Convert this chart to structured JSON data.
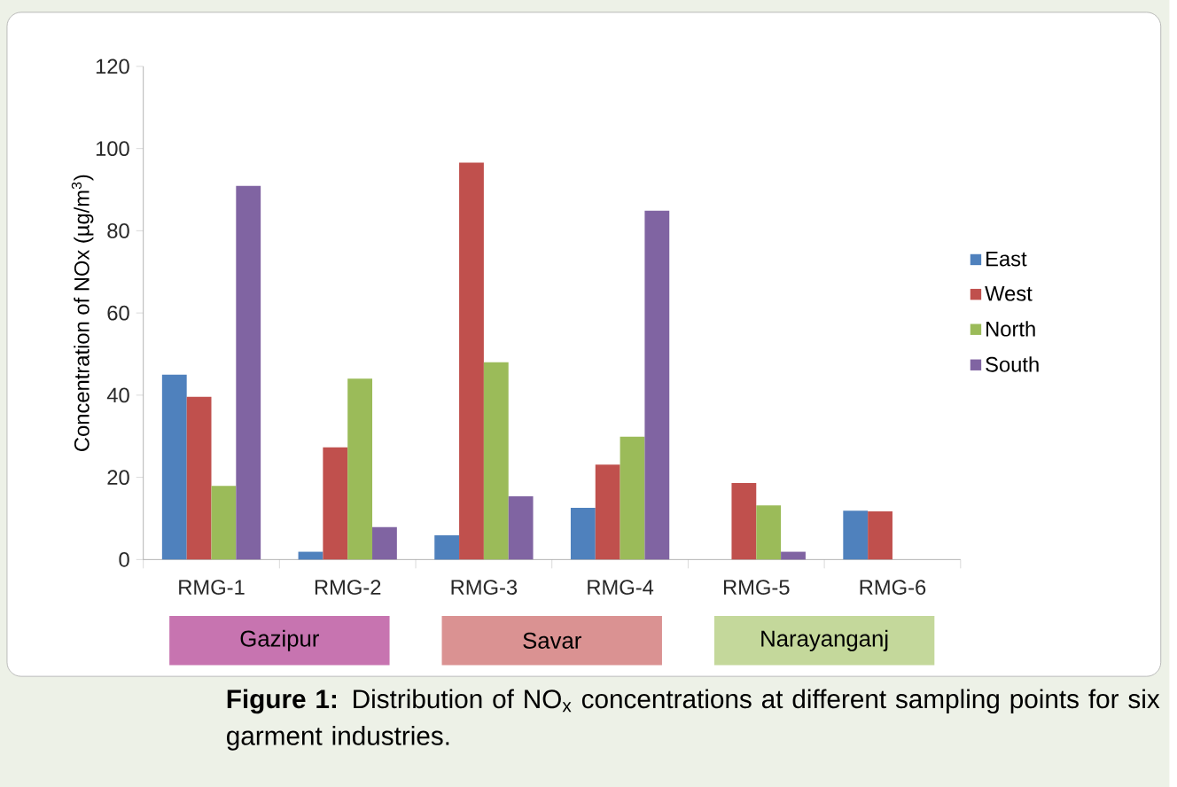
{
  "chart_data": {
    "type": "bar",
    "title": "**Figure 1:** Distribution of NO$_{x}$ concentrations at different sampling points for six garment industries.",
    "ylabel": "Concentration of NOx (µg/m$^{3}$)",
    "categories": [
      "RMG-1",
      "RMG-2",
      "RMG-3",
      "RMG-4",
      "RMG-5",
      "RMG-6"
    ],
    "series": [
      {
        "name": "East",
        "color": "#4f81bd",
        "values": [
          45,
          1.9,
          5.9,
          12.6,
          null,
          11.9
        ]
      },
      {
        "name": "West",
        "color": "#c0504d",
        "values": [
          39.6,
          27.3,
          96.6,
          23.1,
          18.6,
          11.7
        ]
      },
      {
        "name": "North",
        "color": "#9bbb59",
        "values": [
          17.9,
          44,
          48,
          29.9,
          13.2,
          null
        ]
      },
      {
        "name": "South",
        "color": "#8064a2",
        "values": [
          90.9,
          7.9,
          15.4,
          84.9,
          1.9,
          null
        ]
      }
    ],
    "annotations": [
      "Gazipur",
      "Savar",
      "Narayanganj"
    ],
    "ylim": [
      0,
      120
    ],
    "yticks": [
      0,
      20,
      40,
      60,
      80,
      100,
      120
    ],
    "grid": false,
    "legend": "right"
  }
}
